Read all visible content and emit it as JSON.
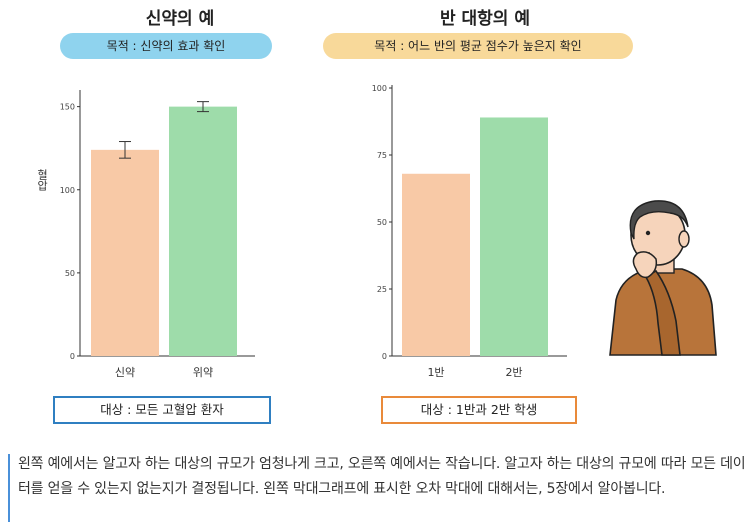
{
  "left_panel": {
    "title": "신약의 예",
    "purpose": "목적 : 신약의 효과 확인",
    "target": "대상 : 모든 고혈압 환자"
  },
  "right_panel": {
    "title": "반 대항의 예",
    "purpose": "목적 : 어느 반의 평균 점수가 높은지 확인",
    "target": "대상 : 1반과 2반 학생"
  },
  "note": {
    "text": "왼쪽 예에서는 알고자 하는 대상의 규모가 엄청나게 크고, 오른쪽 예에서는 작습니다. 알고자 하는 대상의 규모에 따라 모든 데이터를 얻을 수 있는지 없는지가 결정됩니다. 왼쪽 막대그래프에 표시한 오차 막대에 대해서는, 5장에서 알아봅니다."
  },
  "colors": {
    "orange_bar": "#f8c9a6",
    "green_bar": "#9edcaa",
    "purpose_blue": "#8fd3ee",
    "purpose_yellow": "#f8d99a",
    "box_blue": "#2f7fc1",
    "box_orange": "#e98a3a",
    "note_accent": "#4a90d9"
  },
  "icons": [
    "thinking-person-illustration"
  ],
  "chart_data": [
    {
      "type": "bar",
      "categories": [
        "신약",
        "위약"
      ],
      "values": [
        124,
        150
      ],
      "error": [
        5,
        3
      ],
      "ylabel": "혈압",
      "ylim": [
        0,
        160
      ],
      "yticks": [
        0,
        50,
        100,
        150
      ],
      "bar_colors": [
        "#f8c9a6",
        "#9edcaa"
      ],
      "grid": false
    },
    {
      "type": "bar",
      "categories": [
        "1반",
        "2반"
      ],
      "values": [
        68,
        89
      ],
      "ylabel": "",
      "ylim": [
        0,
        100
      ],
      "yticks": [
        0,
        25,
        50,
        75,
        100
      ],
      "bar_colors": [
        "#f8c9a6",
        "#9edcaa"
      ],
      "grid": false
    }
  ]
}
